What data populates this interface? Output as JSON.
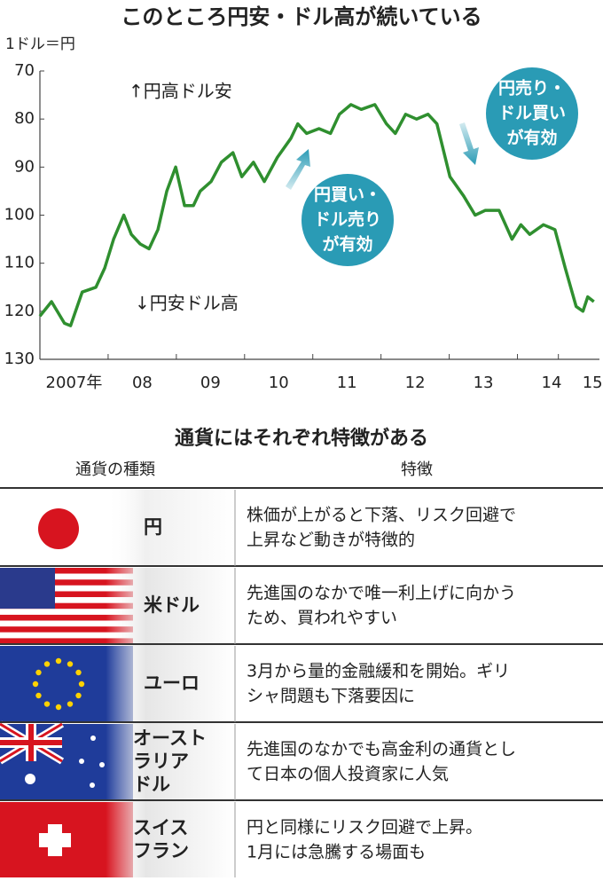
{
  "chart_data": {
    "type": "line",
    "title": "このところ円安・ドル高が続いている",
    "y_label": "1ドル＝円",
    "x": [
      2007.0,
      2007.17,
      2007.36,
      2007.45,
      2007.62,
      2007.82,
      2007.95,
      2008.08,
      2008.23,
      2008.34,
      2008.47,
      2008.6,
      2008.73,
      2008.86,
      2008.99,
      2009.12,
      2009.25,
      2009.35,
      2009.51,
      2009.66,
      2009.83,
      2009.96,
      2010.13,
      2010.29,
      2010.48,
      2010.68,
      2010.78,
      2010.91,
      2011.09,
      2011.26,
      2011.39,
      2011.56,
      2011.71,
      2011.91,
      2012.08,
      2012.21,
      2012.36,
      2012.52,
      2012.69,
      2012.82,
      2013.01,
      2013.21,
      2013.38,
      2013.53,
      2013.73,
      2013.92,
      2014.05,
      2014.18,
      2014.38,
      2014.55,
      2014.7,
      2014.86,
      2014.96,
      2015.03,
      2015.12
    ],
    "values": [
      121,
      118,
      122.5,
      123,
      116,
      115,
      111,
      105,
      100,
      104,
      106,
      107,
      103,
      95,
      90,
      98,
      98,
      95,
      93,
      89,
      87,
      92,
      89,
      93,
      88,
      84,
      81,
      83,
      82,
      83,
      79,
      77,
      78,
      77,
      81,
      83,
      79,
      80,
      79,
      81,
      92,
      96,
      100,
      99,
      99,
      105,
      102,
      104,
      102,
      103,
      111,
      119,
      120,
      117,
      118
    ],
    "color": "#2f8f2f",
    "xlim": [
      2007,
      2015.15
    ],
    "ylim": [
      70,
      130
    ],
    "y_reversed": true,
    "yticks": [
      70,
      80,
      90,
      100,
      110,
      120,
      130
    ],
    "xticks": [
      {
        "value": 2007.5,
        "label": "2007年"
      },
      {
        "value": 2008.5,
        "label": "08"
      },
      {
        "value": 2009.5,
        "label": "09"
      },
      {
        "value": 2010.5,
        "label": "10"
      },
      {
        "value": 2011.5,
        "label": "11"
      },
      {
        "value": 2012.5,
        "label": "12"
      },
      {
        "value": 2013.5,
        "label": "13"
      },
      {
        "value": 2014.5,
        "label": "14"
      },
      {
        "value": 2015.1,
        "label": "15"
      }
    ],
    "annotations": {
      "up": "↑円高ドル安",
      "down": "↓円安ドル高",
      "buy_yen": [
        "円買い・",
        "ドル売り",
        "が有効"
      ],
      "sell_yen": [
        "円売り・",
        "ドル買い",
        "が有効"
      ]
    }
  },
  "table": {
    "title": "通貨にはそれぞれ特徴がある",
    "headers": [
      "通貨の種類",
      "特徴"
    ],
    "rows": [
      {
        "name": [
          "円"
        ],
        "feature": [
          "株価が上がると下落、リスク回避で",
          "上昇など動きが特徴的"
        ]
      },
      {
        "name": [
          "米ドル"
        ],
        "feature": [
          "先進国のなかで唯一利上げに向かう",
          "ため、買われやすい"
        ]
      },
      {
        "name": [
          "ユーロ"
        ],
        "feature": [
          "3月から量的金融緩和を開始。ギリ",
          "シャ問題も下落要因に"
        ]
      },
      {
        "name": [
          "オースト",
          "ラリア",
          "ドル"
        ],
        "feature": [
          "先進国のなかでも高金利の通貨とし",
          "て日本の個人投資家に人気"
        ]
      },
      {
        "name": [
          "スイス",
          "フラン"
        ],
        "feature": [
          "円と同様にリスク回避で上昇。",
          "1月には急騰する場面も"
        ]
      }
    ]
  }
}
